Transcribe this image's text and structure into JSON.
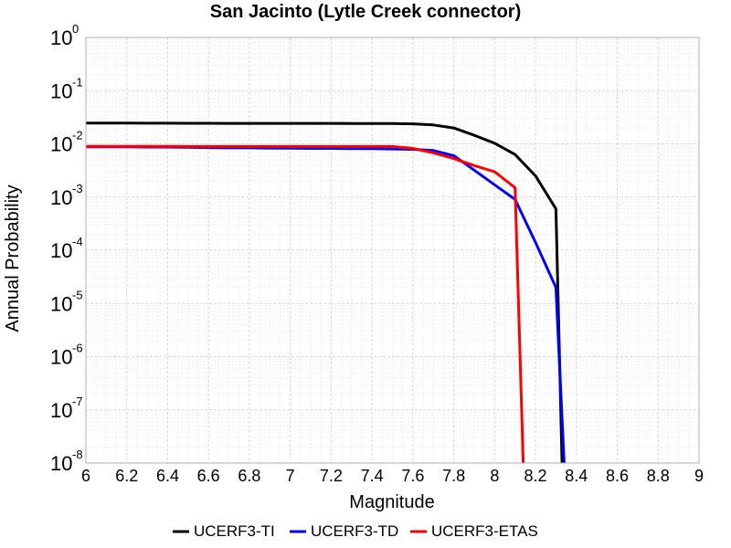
{
  "chart_data": {
    "type": "line",
    "title": "San Jacinto (Lytle Creek connector)",
    "xlabel": "Magnitude",
    "ylabel": "Annual Probability",
    "xlim": [
      6,
      9
    ],
    "ylim": [
      1e-08,
      1
    ],
    "yscale": "log",
    "grid": true,
    "legend_position": "bottom",
    "x_ticks": [
      "6",
      "6.2",
      "6.4",
      "6.6",
      "6.8",
      "7",
      "7.2",
      "7.4",
      "7.6",
      "7.8",
      "8",
      "8.2",
      "8.4",
      "8.6",
      "8.8",
      "9"
    ],
    "y_ticks": [
      {
        "base": "10",
        "exp": "0"
      },
      {
        "base": "10",
        "exp": "-1"
      },
      {
        "base": "10",
        "exp": "-2"
      },
      {
        "base": "10",
        "exp": "-3"
      },
      {
        "base": "10",
        "exp": "-4"
      },
      {
        "base": "10",
        "exp": "-5"
      },
      {
        "base": "10",
        "exp": "-6"
      },
      {
        "base": "10",
        "exp": "-7"
      },
      {
        "base": "10",
        "exp": "-8"
      }
    ],
    "series": [
      {
        "name": "UCERF3-TI",
        "color": "#000000",
        "x": [
          6.0,
          6.1,
          6.2,
          6.3,
          6.4,
          6.5,
          6.6,
          6.7,
          6.8,
          6.9,
          7.0,
          7.1,
          7.2,
          7.3,
          7.4,
          7.5,
          7.6,
          7.7,
          7.8,
          7.9,
          8.0,
          8.1,
          8.2,
          8.3,
          8.33
        ],
        "y": [
          0.0245,
          0.0245,
          0.0245,
          0.0244,
          0.0244,
          0.0243,
          0.0243,
          0.0242,
          0.0242,
          0.0242,
          0.0242,
          0.0242,
          0.0242,
          0.0241,
          0.0241,
          0.0241,
          0.0238,
          0.0227,
          0.0199,
          0.0145,
          0.0103,
          0.0063,
          0.0025,
          0.0006,
          1e-08
        ]
      },
      {
        "name": "UCERF3-TD",
        "color": "#0000ff",
        "x": [
          6.0,
          6.1,
          6.2,
          6.3,
          6.4,
          6.5,
          6.6,
          6.7,
          6.8,
          6.9,
          7.0,
          7.1,
          7.2,
          7.3,
          7.4,
          7.5,
          7.6,
          7.7,
          7.8,
          7.9,
          8.0,
          8.1,
          8.2,
          8.3,
          8.34
        ],
        "y": [
          0.0088,
          0.0088,
          0.0088,
          0.0087,
          0.0087,
          0.0086,
          0.0085,
          0.0084,
          0.0084,
          0.0083,
          0.0083,
          0.0082,
          0.0082,
          0.0081,
          0.0081,
          0.008,
          0.0079,
          0.0075,
          0.006,
          0.0032,
          0.0017,
          0.0009,
          0.00014,
          2e-05,
          1e-08
        ]
      },
      {
        "name": "UCERF3-ETAS",
        "color": "#ff0000",
        "x": [
          6.0,
          6.1,
          6.2,
          6.3,
          6.4,
          6.5,
          6.6,
          6.7,
          6.8,
          6.9,
          7.0,
          7.1,
          7.2,
          7.3,
          7.4,
          7.5,
          7.6,
          7.7,
          7.8,
          7.9,
          8.0,
          8.1,
          8.14
        ],
        "y": [
          0.009,
          0.009,
          0.009,
          0.009,
          0.009,
          0.0089,
          0.0089,
          0.0089,
          0.0089,
          0.0089,
          0.0089,
          0.0089,
          0.0089,
          0.0089,
          0.0089,
          0.0089,
          0.0082,
          0.0068,
          0.0053,
          0.0039,
          0.003,
          0.0015,
          1e-08
        ]
      }
    ]
  }
}
